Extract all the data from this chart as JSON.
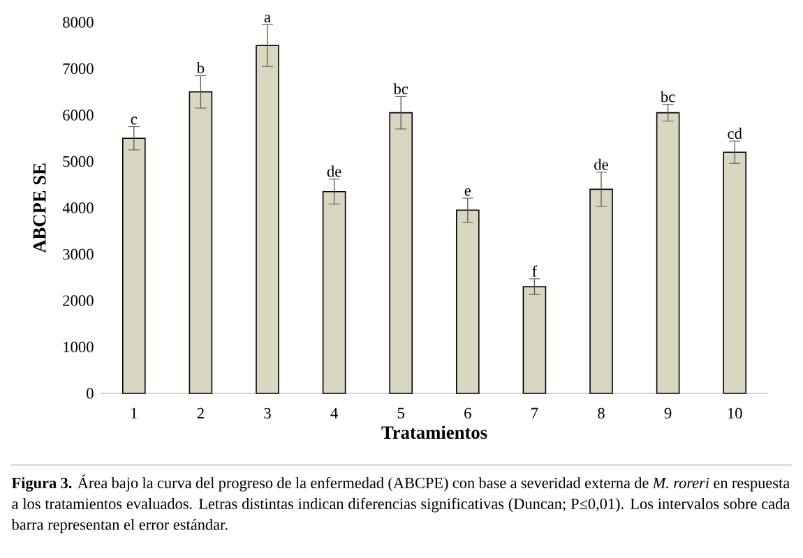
{
  "chart_data": {
    "type": "bar",
    "xlabel": "Tratamientos",
    "ylabel": "ABCPE SE",
    "categories": [
      "1",
      "2",
      "3",
      "4",
      "5",
      "6",
      "7",
      "8",
      "9",
      "10"
    ],
    "values": [
      5500,
      6500,
      7500,
      4350,
      6050,
      3950,
      2300,
      4400,
      6050,
      5200
    ],
    "errors": [
      250,
      350,
      450,
      270,
      350,
      260,
      170,
      370,
      180,
      240
    ],
    "color": "#d9d7c1",
    "ylim": [
      0,
      8000
    ],
    "yticks": [
      0,
      1000,
      2000,
      3000,
      4000,
      5000,
      6000,
      7000,
      8000
    ],
    "annotations": [
      {
        "text": "c",
        "x": "1",
        "y": 5750
      },
      {
        "text": "b",
        "x": "2",
        "y": 6850
      },
      {
        "text": "a",
        "x": "3",
        "y": 7950
      },
      {
        "text": "de",
        "x": "4",
        "y": 4620
      },
      {
        "text": "bc",
        "x": "5",
        "y": 6400
      },
      {
        "text": "e",
        "x": "6",
        "y": 4210
      },
      {
        "text": "f",
        "x": "7",
        "y": 2470
      },
      {
        "text": "de",
        "x": "8",
        "y": 4770
      },
      {
        "text": "bc",
        "x": "9",
        "y": 6230
      },
      {
        "text": "cd",
        "x": "10",
        "y": 5440
      },
      "**Figura 3.** Área bajo la curva del progreso de la enfermedad (ABCPE) con base a severidad externa de *M. roreri* en respuesta a los tratamientos evaluados. Letras distintas indican diferencias significativas (Duncan; P≤0,01). Los intervalos sobre cada barra representan el error estándar."
    ]
  }
}
